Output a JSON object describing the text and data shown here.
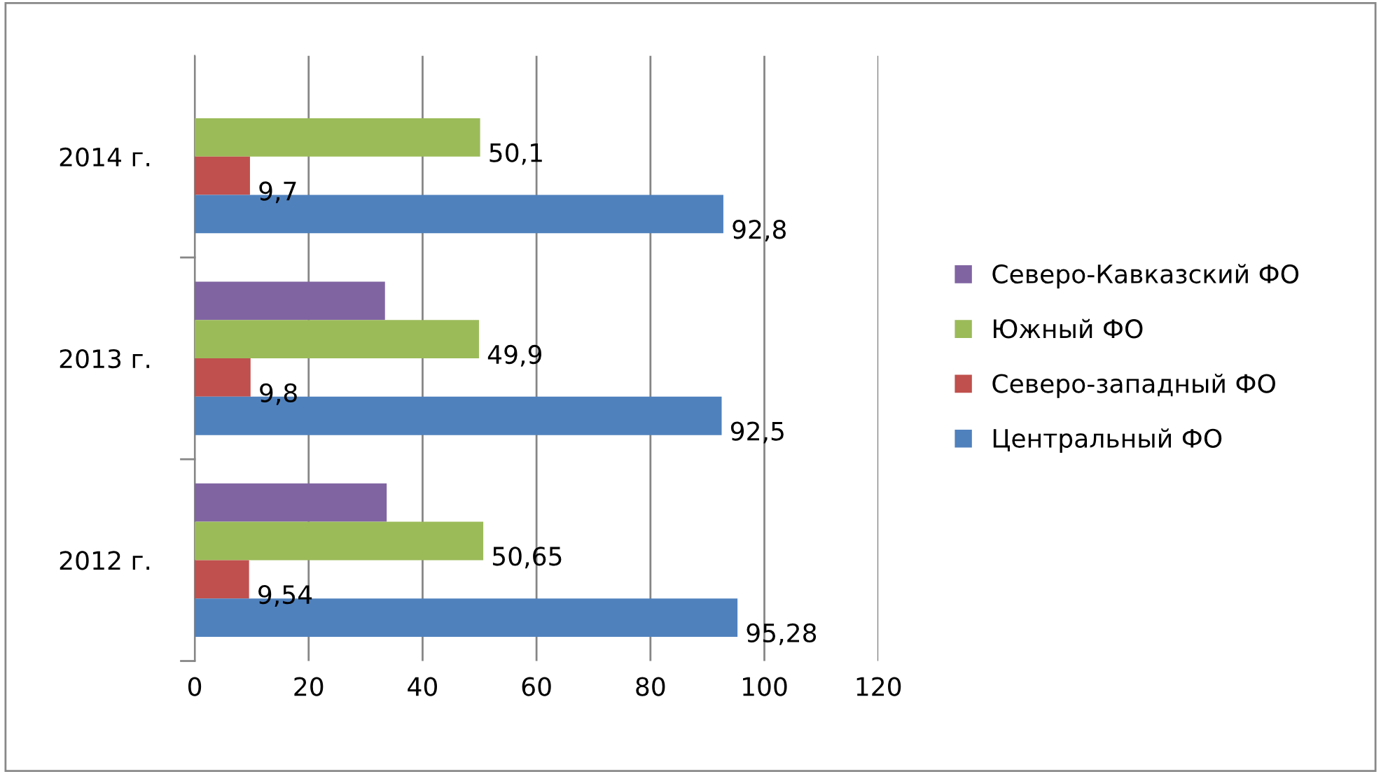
{
  "chart_data": {
    "type": "bar",
    "orientation": "horizontal",
    "categories": [
      "2014 г.",
      "2013 г.",
      "2012 г."
    ],
    "series": [
      {
        "name": "Северо-Кавказский ФО",
        "color": "#8064a2",
        "values": [
          null,
          33.4,
          33.7
        ],
        "value_labels": [
          null,
          null,
          null
        ]
      },
      {
        "name": "Южный ФО",
        "color": "#9bbb59",
        "values": [
          50.1,
          49.9,
          50.65
        ],
        "value_labels": [
          "50,1",
          "49,9",
          "50,65"
        ]
      },
      {
        "name": "Северо-западный ФО",
        "color": "#c0504d",
        "values": [
          9.7,
          9.8,
          9.54
        ],
        "value_labels": [
          "9,7",
          "9,8",
          "9,54"
        ]
      },
      {
        "name": "Центральный ФО",
        "color": "#4f81bd",
        "values": [
          92.8,
          92.5,
          95.28
        ],
        "value_labels": [
          "92,8",
          "92,5",
          "95,28"
        ]
      }
    ],
    "xlim": [
      0,
      120
    ],
    "xticks": [
      0,
      20,
      40,
      60,
      80,
      100,
      120
    ],
    "grid": "x",
    "legend": "right"
  }
}
